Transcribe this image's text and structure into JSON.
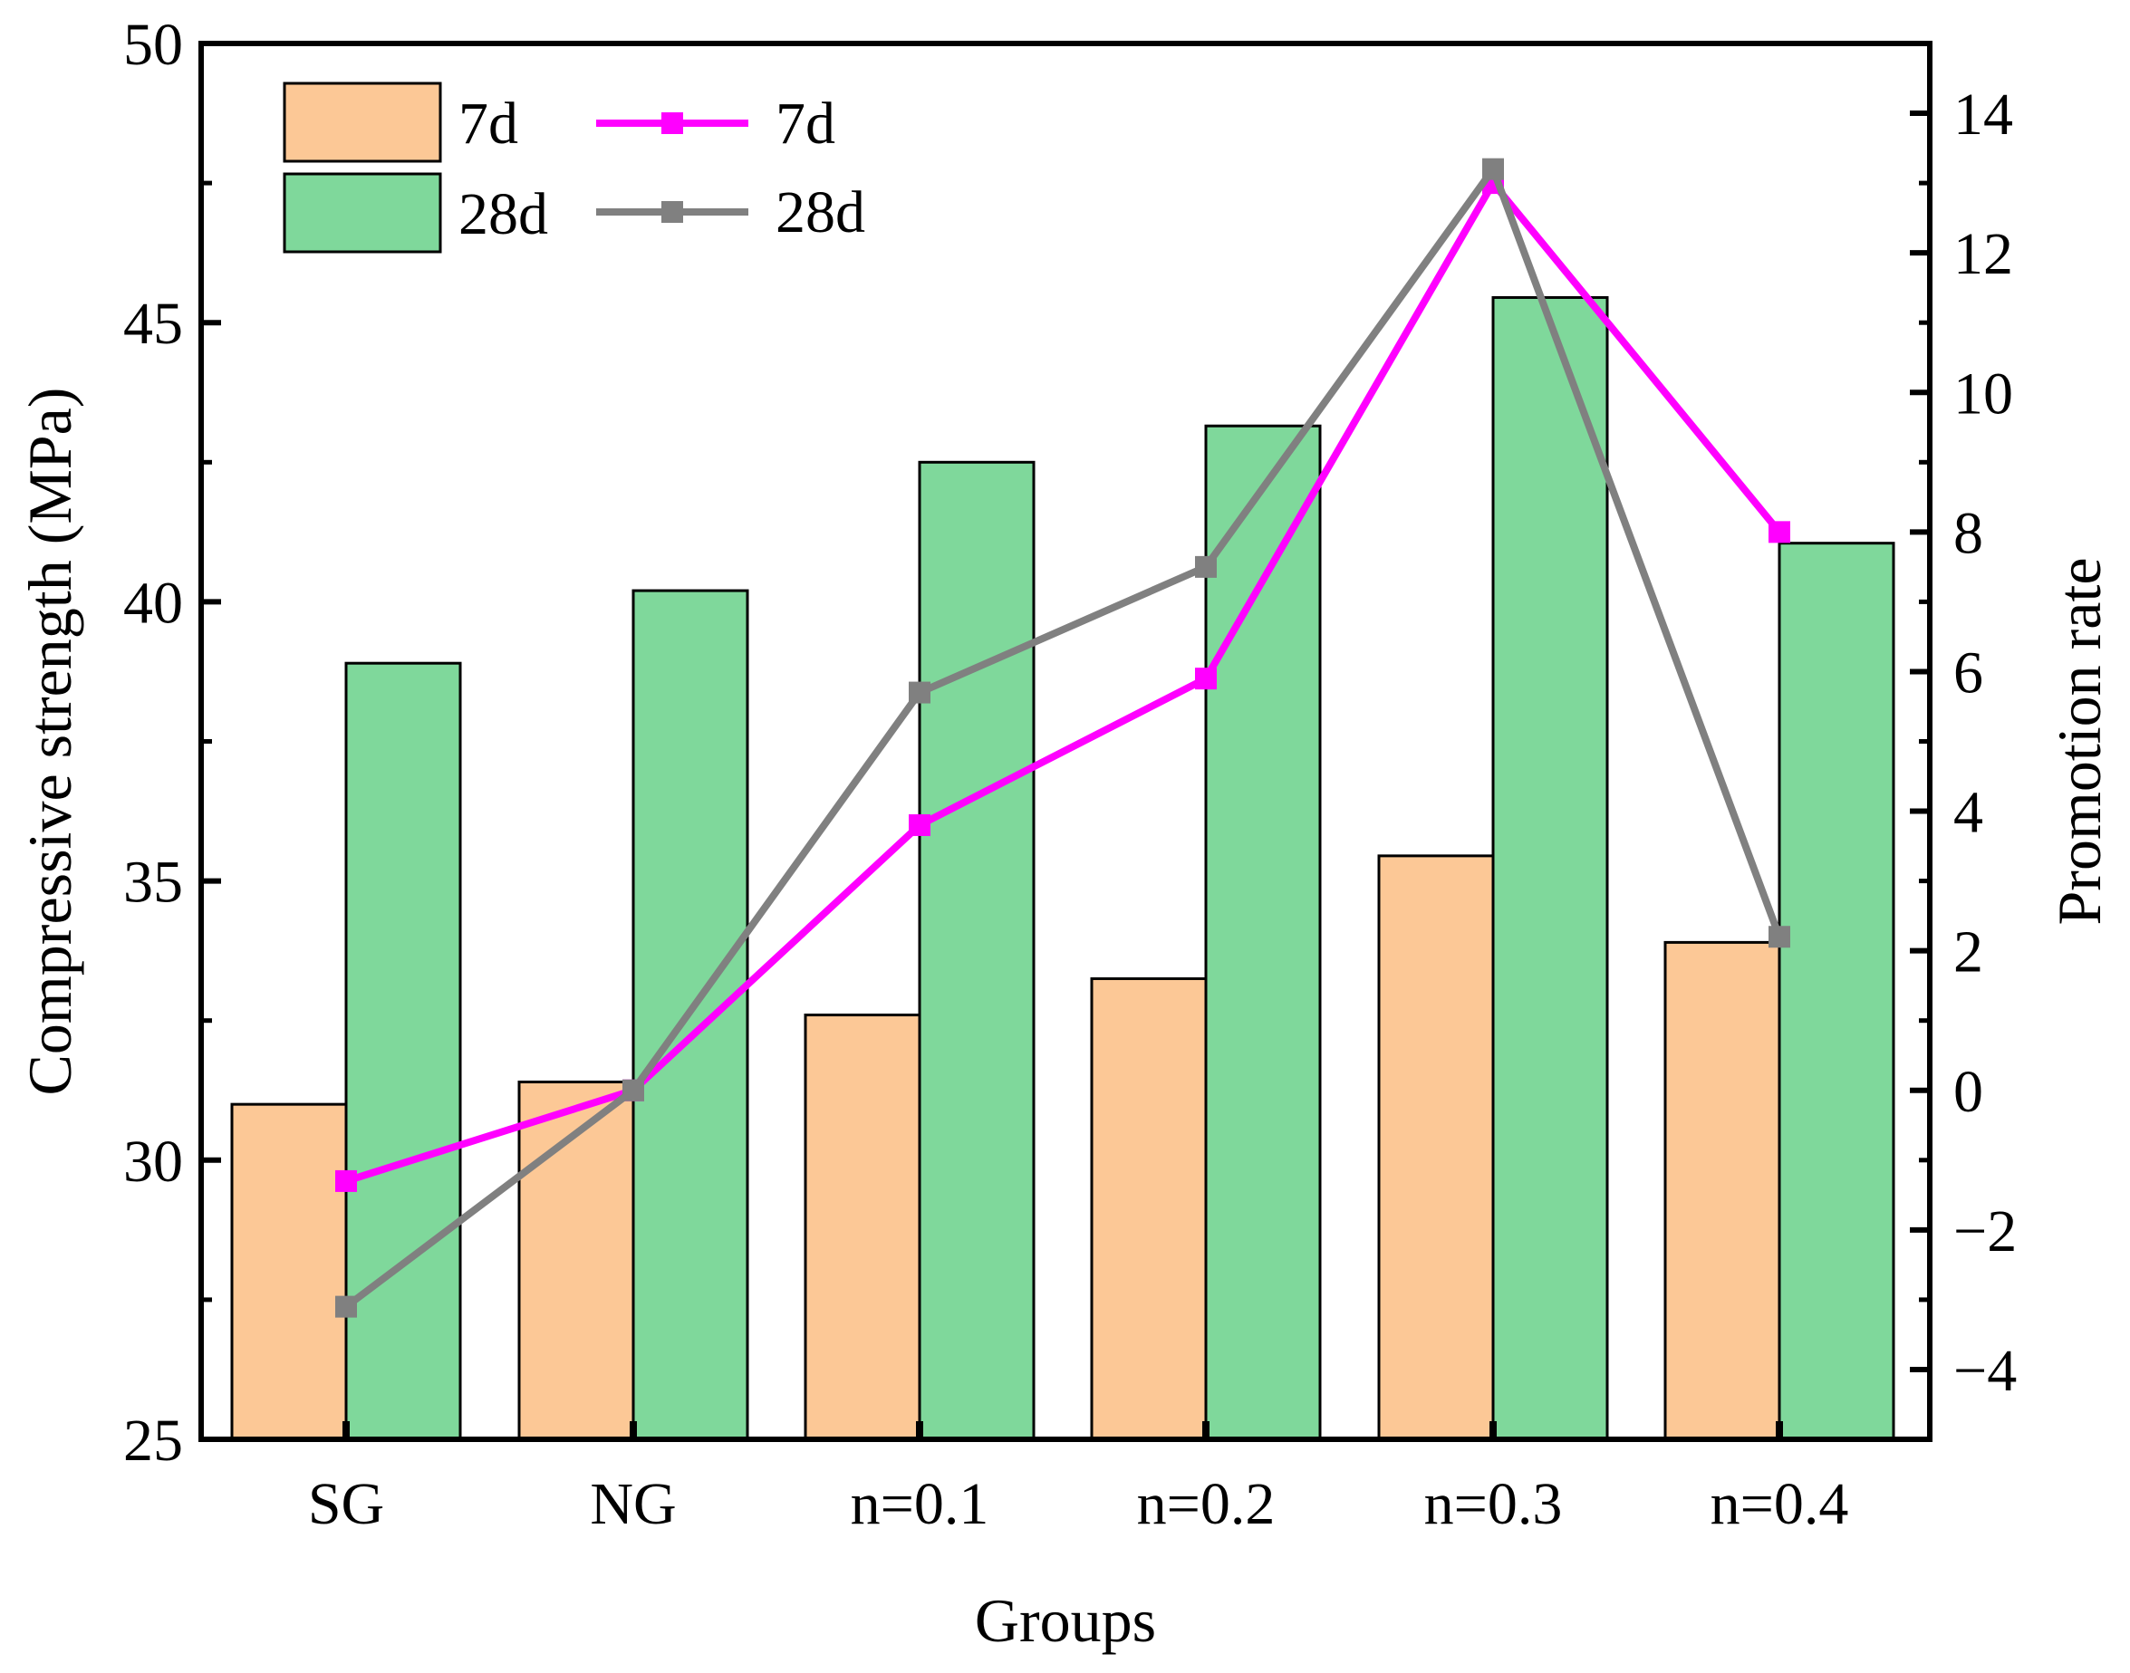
{
  "chart_data": {
    "type": "bar",
    "categories": [
      "SG",
      "NG",
      "n=0.1",
      "n=0.2",
      "n=0.3",
      "n=0.4"
    ],
    "xlabel": "Groups",
    "ylabel": "Compressive strength (MPa)",
    "y2label": "Promotion rate",
    "ylim": [
      25,
      50
    ],
    "y2lim": [
      -5,
      15
    ],
    "yticks": [
      "25",
      "30",
      "35",
      "40",
      "45",
      "50"
    ],
    "y2ticks": [
      "−4",
      "−2",
      "0",
      "2",
      "4",
      "6",
      "8",
      "10",
      "12",
      "14"
    ],
    "bar_series": [
      {
        "name": "7d",
        "color": "#FCC896",
        "values": [
          31.0,
          31.4,
          32.6,
          33.25,
          35.45,
          33.9
        ]
      },
      {
        "name": "28d",
        "color": "#7FD89B",
        "values": [
          38.9,
          40.2,
          42.5,
          43.15,
          45.45,
          41.05
        ]
      }
    ],
    "line_series": [
      {
        "name": "7d",
        "color": "#FF00FF",
        "values": [
          -1.3,
          0.0,
          3.8,
          5.9,
          13.0,
          8.0
        ]
      },
      {
        "name": "28d",
        "color": "#808080",
        "values": [
          -3.1,
          0.0,
          5.7,
          7.5,
          13.2,
          2.2
        ]
      }
    ],
    "legend_position": "top-left",
    "grid": false
  }
}
